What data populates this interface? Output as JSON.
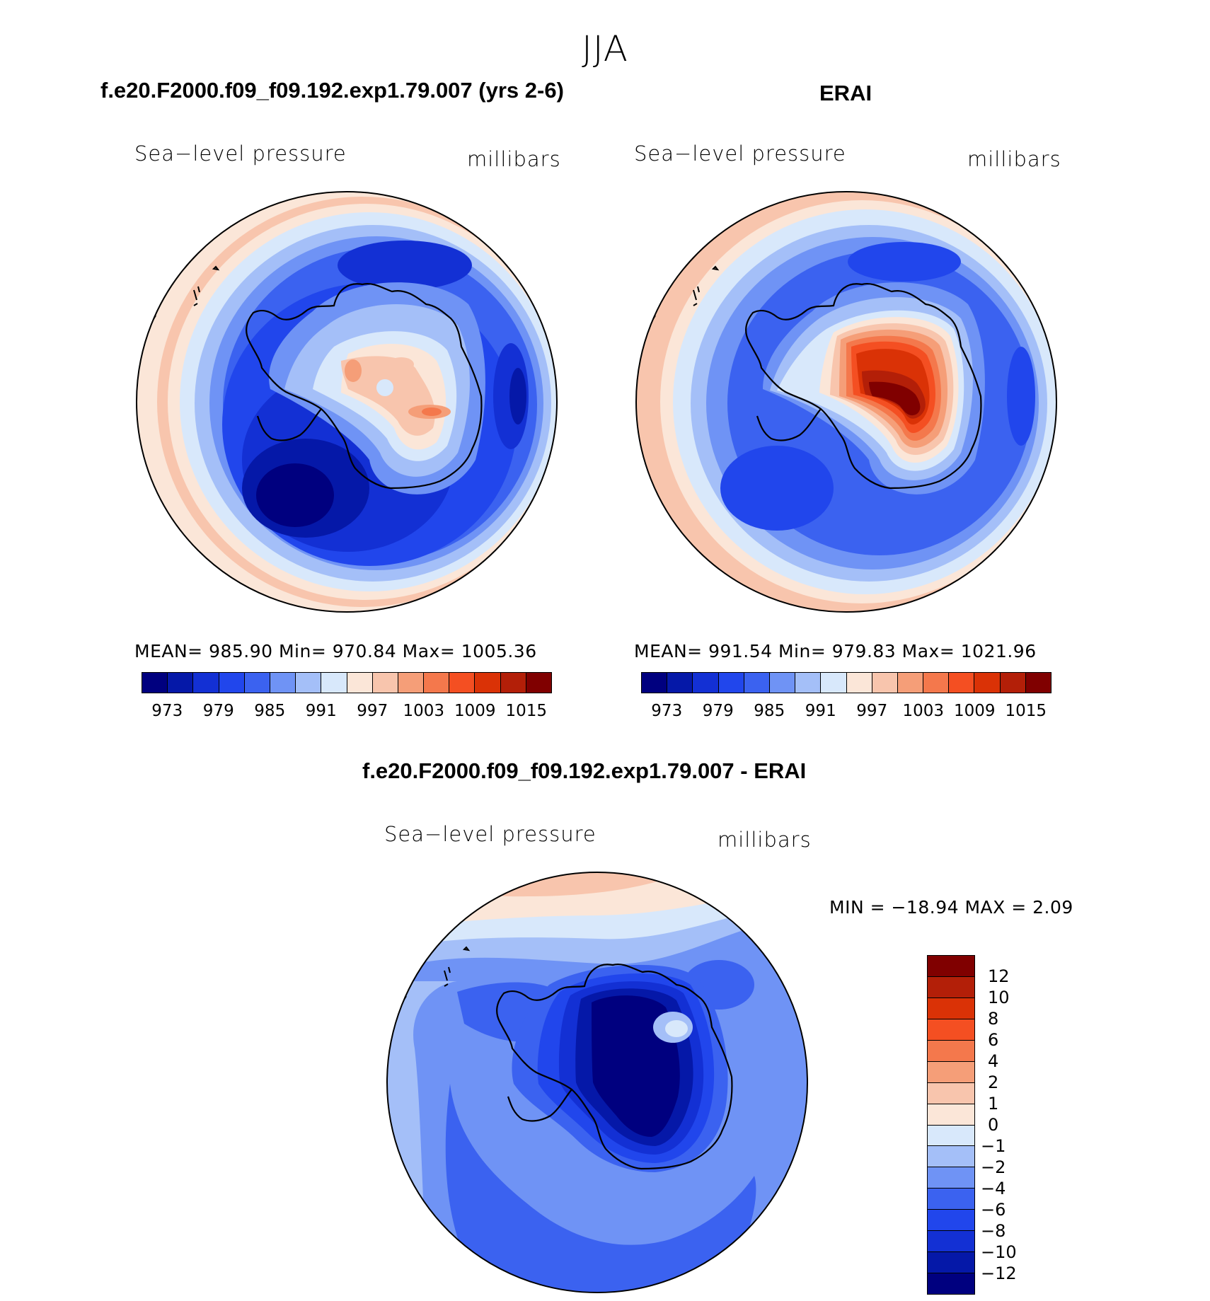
{
  "season": "JJA",
  "panels": {
    "model": {
      "title": "f.e20.F2000.f09_f09.192.exp1.79.007 (yrs 2-6)",
      "variable": "Sea−level  pressure",
      "units": "millibars",
      "stats": "MEAN=  985.90    Min=  970.84    Max=  1005.36",
      "colorbar_ticks": [
        "973",
        "979",
        "985",
        "991",
        "997",
        "1003",
        "1009",
        "1015"
      ]
    },
    "obs": {
      "title": "ERAI",
      "variable": "Sea−level  pressure",
      "units": "millibars",
      "stats": "MEAN=  991.54    Min=  979.83    Max=  1021.96",
      "colorbar_ticks": [
        "973",
        "979",
        "985",
        "991",
        "997",
        "1003",
        "1009",
        "1015"
      ]
    },
    "diff": {
      "title": "f.e20.F2000.f09_f09.192.exp1.79.007 - ERAI",
      "variable": "Sea−level  pressure",
      "units": "millibars",
      "stats": "MIN  =  −18.94  MAX  =     2.09",
      "colorbar_ticks": [
        "12",
        "10",
        "8",
        "6",
        "4",
        "2",
        "1",
        "0",
        "−1",
        "−2",
        "−4",
        "−6",
        "−8",
        "−10",
        "−12"
      ]
    }
  },
  "colors": {
    "seq16": [
      "#00007f",
      "#0518a8",
      "#1330d4",
      "#2146ec",
      "#3b62f0",
      "#6f93f5",
      "#a4bff8",
      "#d8e8fb",
      "#fbe6d8",
      "#f8c5ad",
      "#f59e78",
      "#f4784c",
      "#f44f22",
      "#da3206",
      "#b31f08",
      "#800000"
    ],
    "diff16": [
      "#800000",
      "#b31f08",
      "#da3206",
      "#f44f22",
      "#f4784c",
      "#f59e78",
      "#f8c5ad",
      "#fbe6d8",
      "#d8e8fb",
      "#a4bff8",
      "#6f93f5",
      "#3b62f0",
      "#2146ec",
      "#1330d4",
      "#0518a8",
      "#00007f"
    ],
    "coast": "#000000"
  }
}
